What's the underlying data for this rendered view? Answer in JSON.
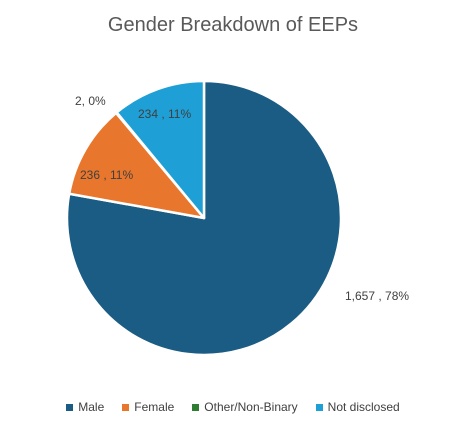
{
  "chart_data": {
    "type": "pie",
    "title": "Gender Breakdown of EEPs",
    "categories": [
      "Male",
      "Female",
      "Other/Non-Binary",
      "Not disclosed"
    ],
    "values": [
      1657,
      236,
      2,
      234
    ],
    "percentages": [
      78,
      11,
      0,
      11
    ],
    "data_labels": [
      "1,657 , 78%",
      "236 , 11%",
      "2, 0%",
      "234 , 11%"
    ],
    "colors": [
      "#1b5c84",
      "#e8762d",
      "#2e7d32",
      "#1e9fd6"
    ],
    "legend_position": "bottom"
  }
}
